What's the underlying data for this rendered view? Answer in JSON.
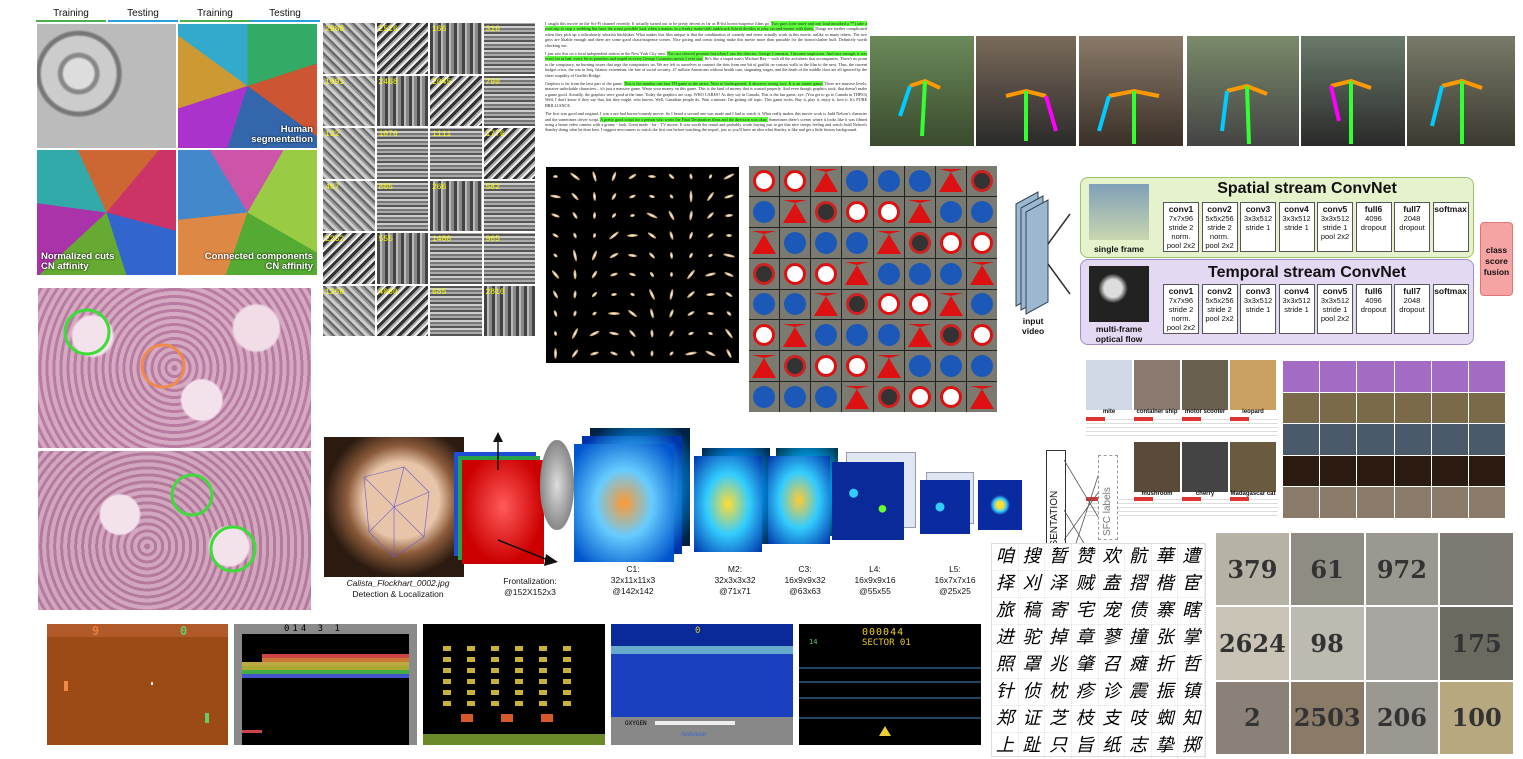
{
  "segmentation": {
    "tabs": [
      "Training",
      "Testing",
      "Training",
      "Testing"
    ],
    "captions": {
      "human": [
        "Human",
        "segmentation"
      ],
      "normalized_cuts": [
        "Normalized cuts",
        "CN affinity"
      ],
      "connected_components": [
        "Connected components",
        "CN affinity"
      ]
    }
  },
  "filter_grid": {
    "numbers": [
      "2988",
      "2516",
      "166",
      "316",
      "1091",
      "2468",
      "2045",
      "790",
      "132",
      "1076",
      "1111",
      "1776",
      "467",
      "805",
      "266",
      "582",
      "2262",
      "555",
      "1480",
      "905",
      "1260",
      "4060",
      "685",
      "2810"
    ]
  },
  "review": {
    "paragraphs": [
      {
        "plain": "I caught this movie on the Sci-Fi channel recently. It actually turned out to be pretty decent as far as B-list horror/suspense films go. ",
        "highlight": "Two guys (one naive and one loud mouthed a **) take a road trip to stop a wedding but have the worst possible luck when a maniac in a freaky make-shift tank/truck hybrid decides to play cat-and-mouse with them.",
        "tail": " Things are further complicated when they pick up a ridiculously whorish hitchhiker. What makes this film unique is that the combination of comedy and terror actually work in this movie, unlike so many others. The two guys are likable enough and there are some good chase/suspense scenes. Nice pacing and comic timing make this movie more than passable for the horror/slasher buff. Definitely worth checking out."
      },
      {
        "plain": "I just saw this on a local independent station in the New York City area. ",
        "highlight": "The cast showed promise but when I saw the director, George Cosmatos, I became suspicious. And sure enough, it was every bit as bad, every bit as pointless and stupid as every George Cosmatos movie I ever saw.",
        "tail": " He's like a stupid man's Michael Bay -- with all the awfulness that accompanies. There's no point to the conspiracy, no burning issues that urge the conspirators on. We are left to ourselves to connect the dots from one bit of graffiti on various walls in the film to the next. Thus, the current budget crisis, the war in Iraq, Islamic extremism, the fate of social security, 47 million Americans without health care, stagnating wages, and the death of the middle class are all ignored by the sheer stupidity of Graffiti Bridge."
      },
      {
        "plain": "Graphics is far from the best part of the game. ",
        "highlight": "This is the number one best TH game in the series. Next to Underground. It deserves strong love. It is an insane game.",
        "tail": " There are massive levels, massive unlockable characters... it's just a massive game. Waste your money on this game. This is the kind of money that is wasted properly. And even though graphics suck, that doesn't make a game good. Actually, the graphics were good at the time. Today the graphics are crap. WHO CARES? As they say in Canada, This is the fun game, aye. (You get to go to Canada in THPS3) Well, I don't know if they say that, but they might. who knows. Well, Canadian people do. Wait a minute, I'm getting off topic. This game rocks. Buy it, play it, enjoy it, love it. It's PURE BRILLIANCE."
      },
      {
        "plain": "The first was good and original. I was a not bad horror/comedy movie. So I heard a second one was made and I had to watch it. What really makes this movie work is Judd Nelson's character and the sometimes clever script. ",
        "highlight": "A pretty good script for a person who wrote the Final Destination films and the direction was okay.",
        "tail": " Sometimes there's scenes where it looks like it was filmed using a home video camera with a grainy - look. Great made - for - TV movie. It was worth the rental and probably worth buying just to get that nice creepy feeling and watch Judd Nelson's Stanley doing what he does best. I suggest newcomers to watch the first one before watching the sequel, just so you'll have an idea what Stanley is like and get a little history background."
      }
    ]
  },
  "two_stream": {
    "input_label": [
      "input",
      "video"
    ],
    "spatial": {
      "title": "Spatial stream ConvNet",
      "frame_label": "single frame",
      "layers": [
        {
          "name": "conv1",
          "lines": [
            "7x7x96",
            "stride 2",
            "norm.",
            "pool 2x2"
          ]
        },
        {
          "name": "conv2",
          "lines": [
            "5x5x256",
            "stride 2",
            "norm.",
            "pool 2x2"
          ]
        },
        {
          "name": "conv3",
          "lines": [
            "3x3x512",
            "stride 1"
          ]
        },
        {
          "name": "conv4",
          "lines": [
            "3x3x512",
            "stride 1"
          ]
        },
        {
          "name": "conv5",
          "lines": [
            "3x3x512",
            "stride 1",
            "pool 2x2"
          ]
        },
        {
          "name": "full6",
          "lines": [
            "4096",
            "dropout"
          ]
        },
        {
          "name": "full7",
          "lines": [
            "2048",
            "dropout"
          ]
        },
        {
          "name": "softmax",
          "lines": []
        }
      ]
    },
    "temporal": {
      "title": "Temporal stream ConvNet",
      "frame_label": [
        "multi-frame",
        "optical flow"
      ],
      "layers": [
        {
          "name": "conv1",
          "lines": [
            "7x7x96",
            "stride 2",
            "norm.",
            "pool 2x2"
          ]
        },
        {
          "name": "conv2",
          "lines": [
            "5x5x256",
            "stride 2",
            "pool 2x2"
          ]
        },
        {
          "name": "conv3",
          "lines": [
            "3x3x512",
            "stride 1"
          ]
        },
        {
          "name": "conv4",
          "lines": [
            "3x3x512",
            "stride 1"
          ]
        },
        {
          "name": "conv5",
          "lines": [
            "3x3x512",
            "stride 1",
            "pool 2x2"
          ]
        },
        {
          "name": "full6",
          "lines": [
            "4096",
            "dropout"
          ]
        },
        {
          "name": "full7",
          "lines": [
            "2048",
            "dropout"
          ]
        },
        {
          "name": "softmax",
          "lines": []
        }
      ]
    },
    "fusion": [
      "class",
      "score",
      "fusion"
    ]
  },
  "imagenet": {
    "labels": [
      "mite",
      "container ship",
      "motor scooter",
      "leopard",
      "mushroom",
      "cherry",
      "Madagascar cat"
    ]
  },
  "deepface": {
    "filename": "Calista_Flockhart_0002.jpg",
    "detect": "Detection & Localization",
    "front": [
      "Frontalization:",
      "@152X152x3"
    ],
    "layers": [
      {
        "name": "C1:",
        "dims": "32x11x11x3",
        "at": "@142x142"
      },
      {
        "name": "M2:",
        "dims": "32x3x3x32",
        "at": "@71x71"
      },
      {
        "name": "C3:",
        "dims": "16x9x9x32",
        "at": "@63x63"
      },
      {
        "name": "L4:",
        "dims": "16x9x9x16",
        "at": "@55x55"
      },
      {
        "name": "L5:",
        "dims": "16x7x7x16",
        "at": "@25x25"
      }
    ],
    "representation": "REPRESENTATION",
    "sfc": "SFC labels"
  },
  "chinese_chars": [
    "咱",
    "搜",
    "暂",
    "赞",
    "欢",
    "骯",
    "華",
    "遭",
    "择",
    "刈",
    "泽",
    "贼",
    "盍",
    "摺",
    "楷",
    "宦",
    "旅",
    "稿",
    "寄",
    "宅",
    "宠",
    "债",
    "寨",
    "瞎",
    "进",
    "驼",
    "掉",
    "章",
    "蓼",
    "撞",
    "张",
    "掌",
    "照",
    "罩",
    "兆",
    "肇",
    "召",
    "瘫",
    "折",
    "哲",
    "针",
    "侦",
    "枕",
    "疹",
    "诊",
    "震",
    "振",
    "镇",
    "郑",
    "证",
    "芝",
    "枝",
    "支",
    "吱",
    "蜘",
    "知",
    "上",
    "趾",
    "只",
    "旨",
    "纸",
    "志",
    "挚",
    "掷"
  ],
  "svhn": [
    "379",
    "61",
    "972",
    "",
    "2624",
    "98",
    "",
    "175",
    "2",
    "2503",
    "206",
    "100"
  ],
  "atari": {
    "pong_score": [
      "9",
      "0"
    ],
    "breakout_score": "014 3 1",
    "seaquest_score": "0",
    "seaquest_oxygen": "OXYGEN",
    "seaquest_brand": "Activision",
    "beamrider_score": "000044",
    "beamrider_sector": "SECTOR 01",
    "beamrider_lives": "14"
  }
}
